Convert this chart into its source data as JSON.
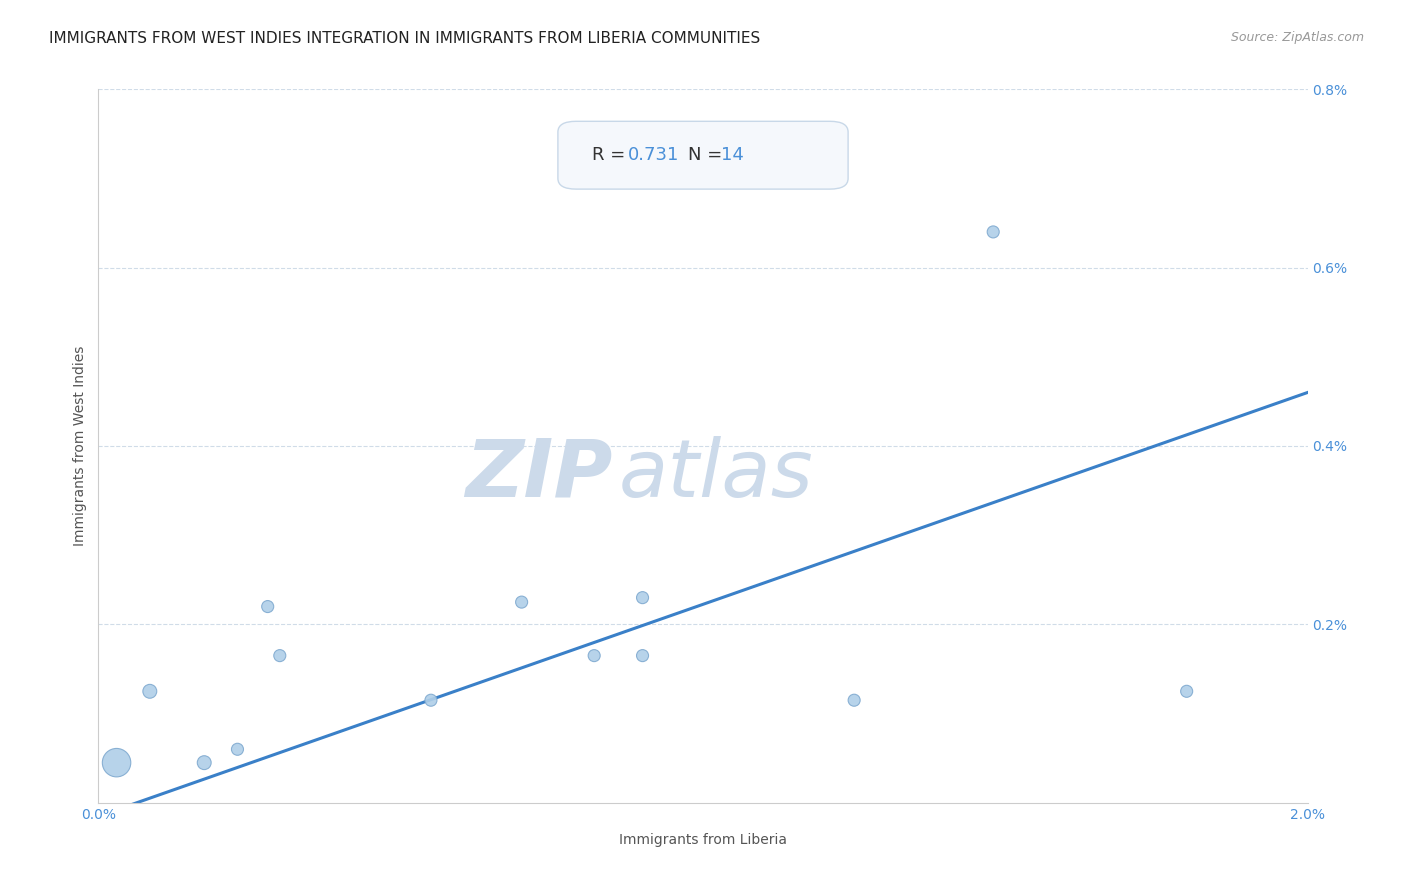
{
  "title": "IMMIGRANTS FROM WEST INDIES INTEGRATION IN IMMIGRANTS FROM LIBERIA COMMUNITIES",
  "source": "Source: ZipAtlas.com",
  "xlabel": "Immigrants from Liberia",
  "ylabel": "Immigrants from West Indies",
  "R": 0.731,
  "N": 14,
  "xlim": [
    0.0,
    0.02
  ],
  "ylim": [
    0.0,
    0.008
  ],
  "xticks": [
    0.0,
    0.005,
    0.01,
    0.015,
    0.02
  ],
  "xtick_labels": [
    "0.0%",
    "",
    "",
    "",
    "2.0%"
  ],
  "yticks": [
    0.0,
    0.002,
    0.004,
    0.006,
    0.008
  ],
  "ytick_labels": [
    "",
    "0.2%",
    "0.4%",
    "0.6%",
    "0.8%"
  ],
  "scatter_x": [
    0.0003,
    0.00085,
    0.00175,
    0.0023,
    0.0028,
    0.003,
    0.0055,
    0.007,
    0.0082,
    0.009,
    0.009,
    0.0125,
    0.0148,
    0.018
  ],
  "scatter_y": [
    0.00045,
    0.00125,
    0.00045,
    0.0006,
    0.0022,
    0.00165,
    0.00115,
    0.00225,
    0.00165,
    0.00165,
    0.0023,
    0.00115,
    0.0064,
    0.00125
  ],
  "scatter_sizes": [
    420,
    100,
    100,
    75,
    75,
    75,
    75,
    75,
    75,
    75,
    75,
    75,
    75,
    75
  ],
  "scatter_color": "#b0cfe8",
  "scatter_edgecolor": "#80aad0",
  "line_color": "#3a80c8",
  "line_x_start": 0.0,
  "line_x_end": 0.02,
  "line_y_start": -0.00015,
  "line_y_end": 0.0046,
  "title_fontsize": 11,
  "axis_label_fontsize": 10,
  "tick_fontsize": 10,
  "watermark_zip": "ZIP",
  "watermark_atlas": "atlas",
  "watermark_color": "#ccdaea",
  "annotation_box_facecolor": "#f5f8fc",
  "annotation_border_color": "#c8d8e8",
  "background_color": "#ffffff",
  "grid_color": "#d0dce8",
  "tick_color": "#4a90d8",
  "label_color": "#555555",
  "title_color": "#222222",
  "source_color": "#999999",
  "ann_r_label_color": "#333333",
  "ann_r_value_color": "#4a90d8",
  "ann_n_label_color": "#333333",
  "ann_n_value_color": "#4a90d8"
}
